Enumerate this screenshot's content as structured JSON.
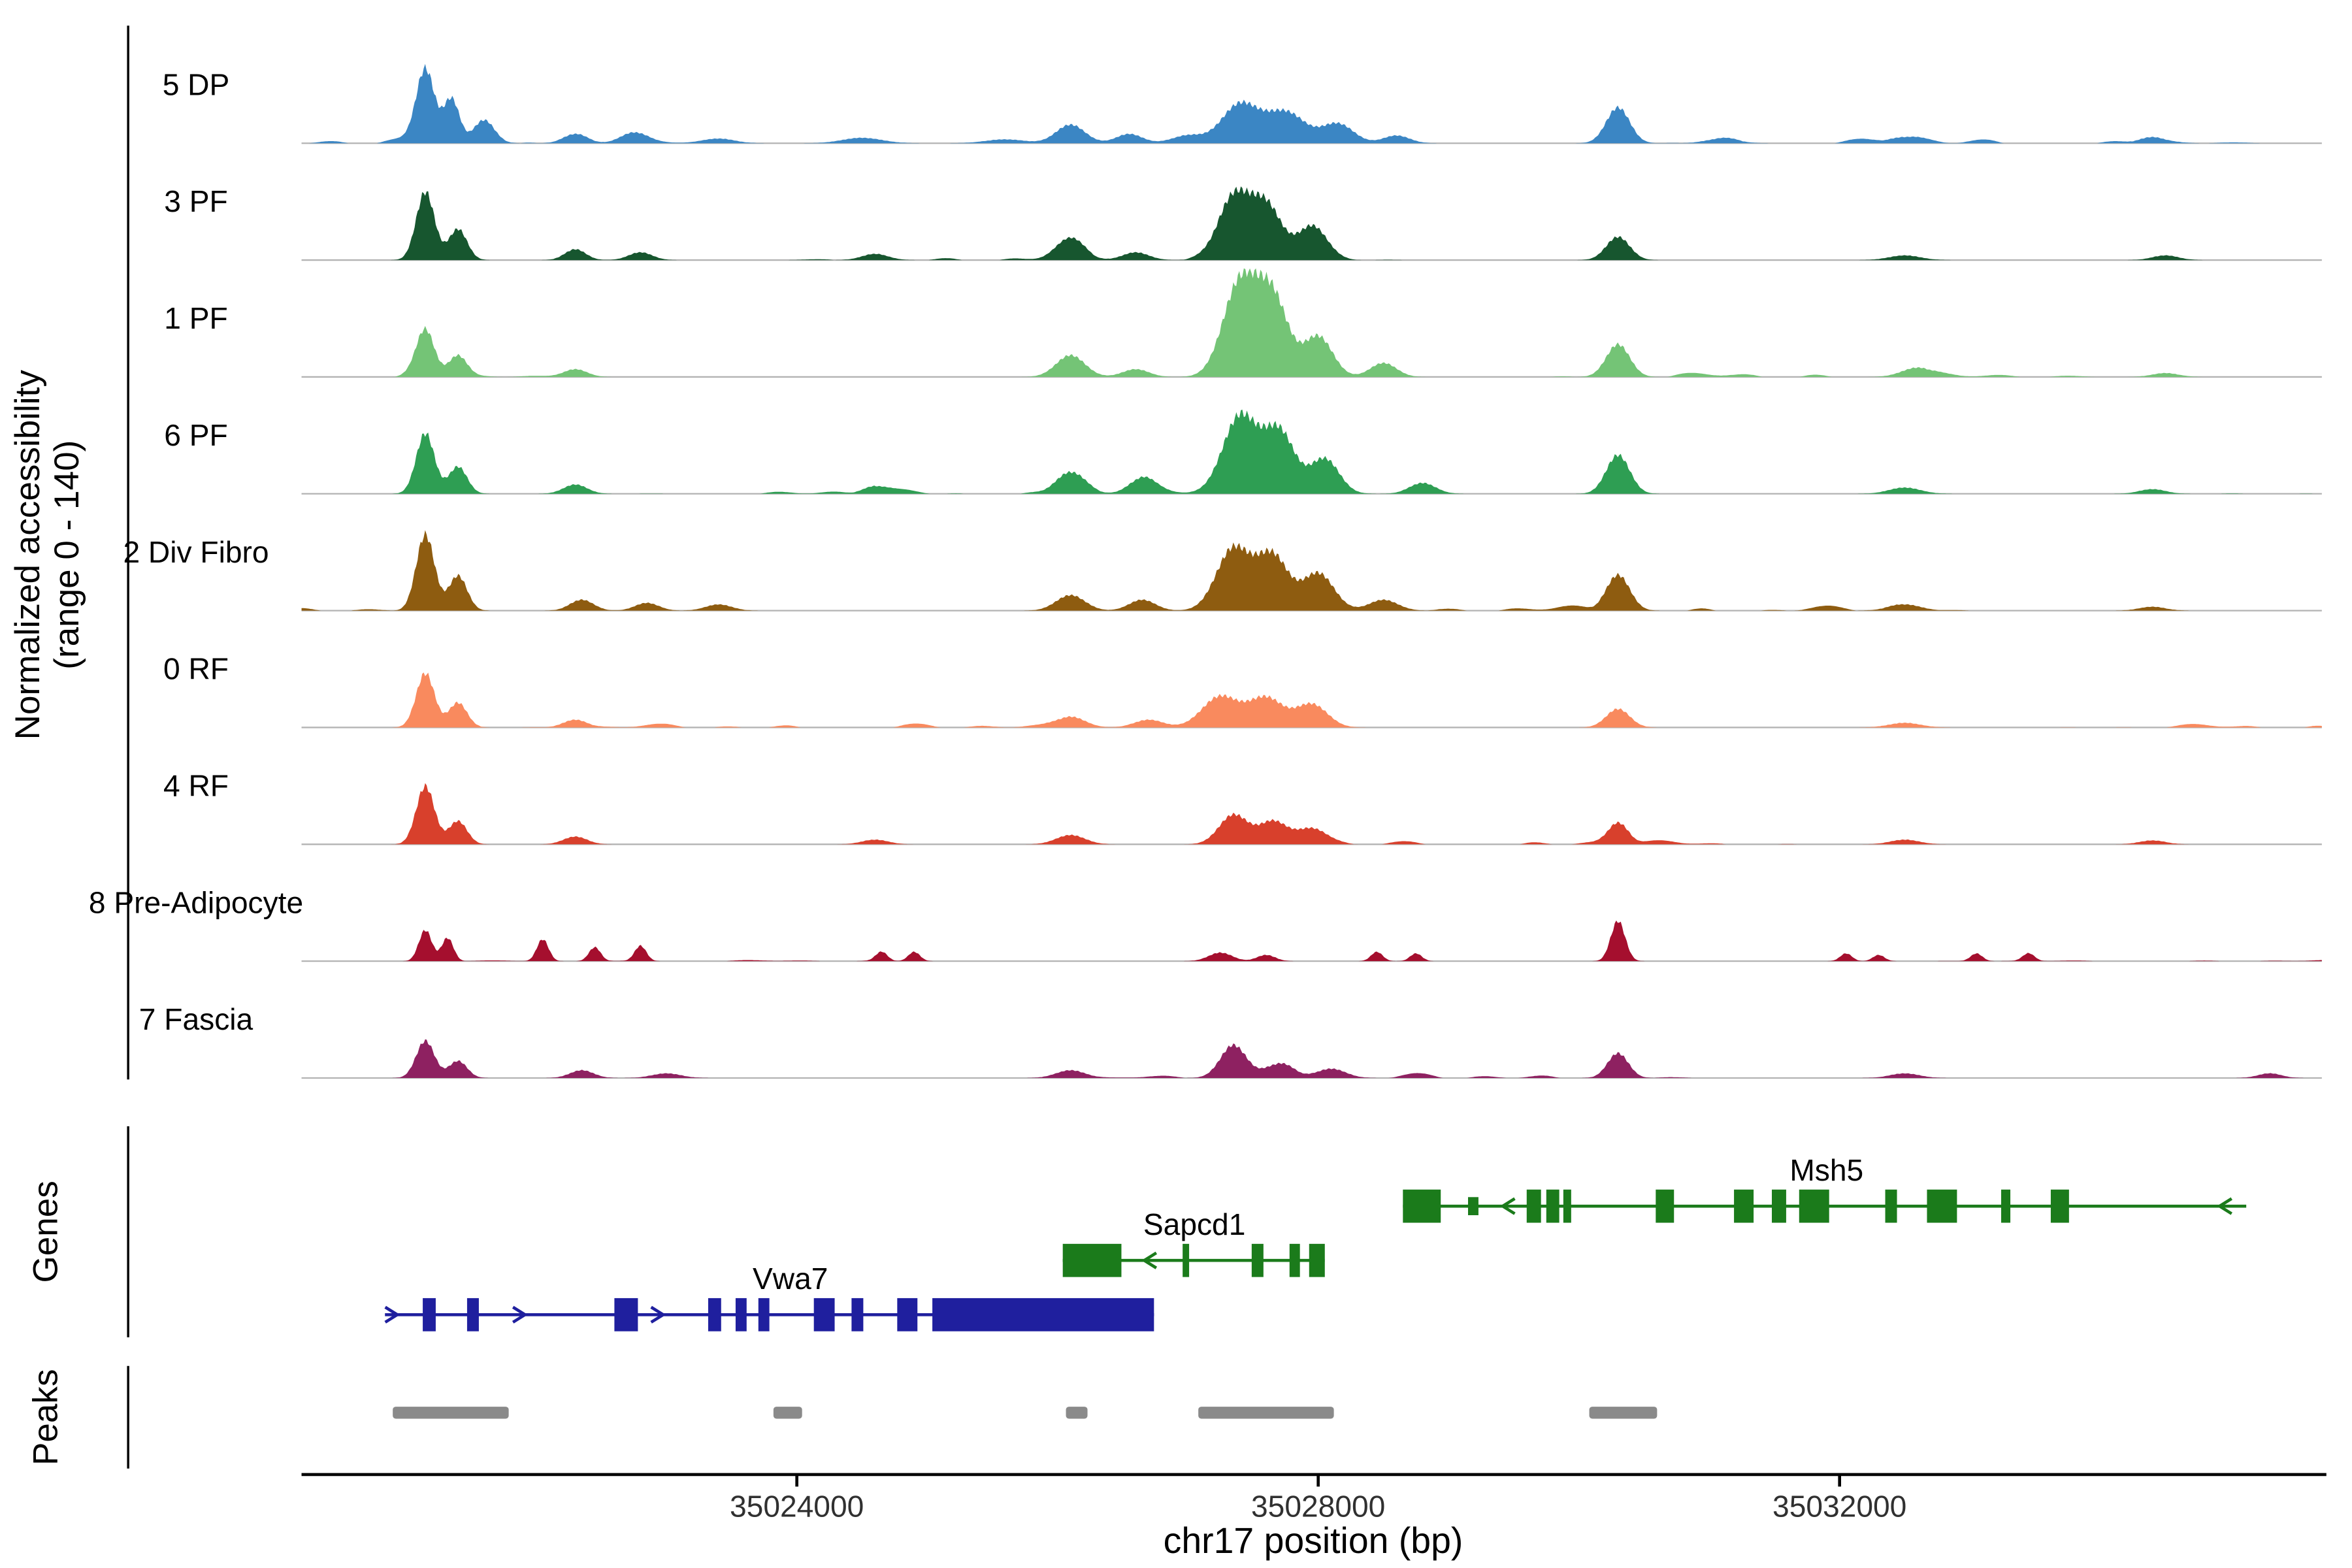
{
  "figure": {
    "ylabel_line1": "Normalized accessibility",
    "ylabel_line2": "(range 0 - 140)",
    "genes_section_label": "Genes",
    "peaks_section_label": "Peaks",
    "xlabel": "chr17 position (bp)"
  },
  "chart_data": {
    "type": "area",
    "title": "",
    "xlabel": "chr17 position (bp)",
    "ylabel": "Normalized accessibility (range 0 - 140)",
    "xlim": [
      35020200,
      35035700
    ],
    "ylim": [
      0,
      140
    ],
    "xticks": [
      35024000,
      35028000,
      35032000
    ],
    "grid": false,
    "legend": false,
    "tracks": [
      {
        "label": "5 DP",
        "color": "#3b86c4",
        "noise": 2.5,
        "peaks": [
          [
            35021150,
            95,
            70
          ],
          [
            35021350,
            55,
            60
          ],
          [
            35021600,
            30,
            80
          ],
          [
            35022300,
            12,
            90
          ],
          [
            35022750,
            14,
            100
          ],
          [
            35023400,
            6,
            120
          ],
          [
            35024500,
            7,
            150
          ],
          [
            35025600,
            5,
            150
          ],
          [
            35026100,
            24,
            110
          ],
          [
            35026550,
            12,
            100
          ],
          [
            35027000,
            10,
            120
          ],
          [
            35027400,
            50,
            140
          ],
          [
            35027750,
            40,
            150
          ],
          [
            35028150,
            25,
            120
          ],
          [
            35028600,
            10,
            100
          ],
          [
            35030300,
            46,
            90
          ],
          [
            35031100,
            6,
            120
          ],
          [
            35032500,
            8,
            130
          ],
          [
            35034400,
            8,
            100
          ]
        ]
      },
      {
        "label": "3 PF",
        "color": "#17562f",
        "noise": 2.5,
        "peaks": [
          [
            35021150,
            88,
            70
          ],
          [
            35021400,
            40,
            70
          ],
          [
            35022300,
            14,
            80
          ],
          [
            35022800,
            10,
            90
          ],
          [
            35024600,
            8,
            100
          ],
          [
            35026100,
            22,
            110
          ],
          [
            35026600,
            10,
            100
          ],
          [
            35027350,
            80,
            120
          ],
          [
            35027600,
            70,
            120
          ],
          [
            35027950,
            42,
            110
          ],
          [
            35030300,
            30,
            90
          ],
          [
            35032500,
            6,
            120
          ],
          [
            35034500,
            6,
            100
          ]
        ]
      },
      {
        "label": "1 PF",
        "color": "#74c476",
        "noise": 2.5,
        "peaks": [
          [
            35021150,
            60,
            70
          ],
          [
            35021400,
            28,
            70
          ],
          [
            35022300,
            10,
            90
          ],
          [
            35026100,
            28,
            110
          ],
          [
            35026600,
            10,
            100
          ],
          [
            35027400,
            120,
            130
          ],
          [
            35027650,
            100,
            120
          ],
          [
            35028000,
            52,
            110
          ],
          [
            35028500,
            18,
            100
          ],
          [
            35030300,
            42,
            90
          ],
          [
            35032600,
            12,
            120
          ],
          [
            35034500,
            5,
            100
          ]
        ]
      },
      {
        "label": "6 PF",
        "color": "#2e9e53",
        "noise": 2.5,
        "peaks": [
          [
            35021150,
            78,
            70
          ],
          [
            35021400,
            35,
            70
          ],
          [
            35022300,
            12,
            90
          ],
          [
            35024600,
            10,
            90
          ],
          [
            35026100,
            28,
            110
          ],
          [
            35026650,
            20,
            100
          ],
          [
            35027400,
            100,
            130
          ],
          [
            35027700,
            80,
            120
          ],
          [
            35028050,
            45,
            110
          ],
          [
            35028800,
            14,
            100
          ],
          [
            35030300,
            50,
            90
          ],
          [
            35032500,
            8,
            120
          ],
          [
            35034400,
            6,
            100
          ]
        ]
      },
      {
        "label": "2 Div Fibro",
        "color": "#8e5c10",
        "noise": 3,
        "peaks": [
          [
            35021150,
            98,
            70
          ],
          [
            35021400,
            45,
            70
          ],
          [
            35022350,
            14,
            90
          ],
          [
            35022850,
            10,
            90
          ],
          [
            35023400,
            8,
            100
          ],
          [
            35026100,
            20,
            110
          ],
          [
            35026650,
            14,
            100
          ],
          [
            35027350,
            80,
            130
          ],
          [
            35027650,
            70,
            120
          ],
          [
            35028000,
            48,
            120
          ],
          [
            35028500,
            14,
            110
          ],
          [
            35030300,
            46,
            90
          ],
          [
            35032500,
            8,
            120
          ],
          [
            35034400,
            5,
            100
          ]
        ]
      },
      {
        "label": "0 RF",
        "color": "#f98a5e",
        "noise": 2.5,
        "peaks": [
          [
            35021150,
            70,
            70
          ],
          [
            35021400,
            32,
            70
          ],
          [
            35022300,
            10,
            90
          ],
          [
            35026100,
            14,
            110
          ],
          [
            35026700,
            10,
            110
          ],
          [
            35027250,
            40,
            140
          ],
          [
            35027600,
            38,
            130
          ],
          [
            35027950,
            30,
            120
          ],
          [
            35030300,
            24,
            90
          ],
          [
            35032500,
            6,
            120
          ]
        ]
      },
      {
        "label": "4 RF",
        "color": "#d8402c",
        "noise": 2.5,
        "peaks": [
          [
            35021150,
            75,
            70
          ],
          [
            35021400,
            30,
            70
          ],
          [
            35022300,
            10,
            90
          ],
          [
            35024600,
            6,
            100
          ],
          [
            35026100,
            12,
            110
          ],
          [
            35027350,
            38,
            110
          ],
          [
            35027650,
            28,
            110
          ],
          [
            35027950,
            20,
            110
          ],
          [
            35030300,
            28,
            80
          ],
          [
            35032500,
            6,
            110
          ],
          [
            35034400,
            5,
            100
          ]
        ]
      },
      {
        "label": "8 Pre-Adipocyte",
        "color": "#a50f2e",
        "noise": 0.6,
        "peaks": [
          [
            35021150,
            40,
            50
          ],
          [
            35021320,
            30,
            45
          ],
          [
            35022050,
            28,
            45
          ],
          [
            35022450,
            18,
            45
          ],
          [
            35022800,
            20,
            45
          ],
          [
            35024650,
            12,
            45
          ],
          [
            35024900,
            12,
            45
          ],
          [
            35027250,
            11,
            90
          ],
          [
            35027600,
            8,
            70
          ],
          [
            35028450,
            12,
            45
          ],
          [
            35028750,
            10,
            45
          ],
          [
            35030300,
            52,
            55
          ],
          [
            35032050,
            10,
            45
          ],
          [
            35032300,
            8,
            45
          ],
          [
            35033050,
            10,
            45
          ],
          [
            35033450,
            10,
            45
          ]
        ]
      },
      {
        "label": "7 Fascia",
        "color": "#8e2161",
        "noise": 2.5,
        "peaks": [
          [
            35021150,
            48,
            70
          ],
          [
            35021400,
            22,
            70
          ],
          [
            35022350,
            10,
            90
          ],
          [
            35023000,
            6,
            110
          ],
          [
            35026100,
            10,
            110
          ],
          [
            35027350,
            42,
            100
          ],
          [
            35027700,
            18,
            110
          ],
          [
            35028100,
            12,
            110
          ],
          [
            35030300,
            32,
            80
          ],
          [
            35032500,
            6,
            110
          ],
          [
            35035300,
            6,
            90
          ]
        ]
      }
    ],
    "genes": [
      {
        "name": "Msh5",
        "strand": "-",
        "color": "#1b7b1b",
        "row": 0,
        "start": 35028650,
        "end": 35035120,
        "label_bp": 35031900,
        "exons": [
          [
            35028650,
            35028940
          ],
          [
            35029150,
            35029230,
            12
          ],
          [
            35029600,
            35029710
          ],
          [
            35029750,
            35029850
          ],
          [
            35029880,
            35029940
          ],
          [
            35030590,
            35030730
          ],
          [
            35031190,
            35031340
          ],
          [
            35031480,
            35031590
          ],
          [
            35031690,
            35031920
          ],
          [
            35032350,
            35032440
          ],
          [
            35032670,
            35032900
          ],
          [
            35033240,
            35033310
          ],
          [
            35033620,
            35033760
          ]
        ],
        "arrows": [
          35029450,
          35034950
        ]
      },
      {
        "name": "Sapcd1",
        "strand": "-",
        "color": "#1b7b1b",
        "row": 1,
        "start": 35026040,
        "end": 35028050,
        "label_bp": 35027050,
        "exons": [
          [
            35026040,
            35026490
          ],
          [
            35026960,
            35027010
          ],
          [
            35027490,
            35027580
          ],
          [
            35027780,
            35027860
          ],
          [
            35027930,
            35028050
          ]
        ],
        "arrows": [
          35026700
        ]
      },
      {
        "name": "Vwa7",
        "strand": "+",
        "color": "#1f1f9e",
        "row": 2,
        "start": 35020840,
        "end": 35026740,
        "label_bp": 35023950,
        "exons": [
          [
            35021130,
            35021230
          ],
          [
            35021470,
            35021560
          ],
          [
            35022600,
            35022780
          ],
          [
            35023320,
            35023420
          ],
          [
            35023530,
            35023615
          ],
          [
            35023705,
            35023790
          ],
          [
            35024130,
            35024290
          ],
          [
            35024420,
            35024510
          ],
          [
            35024770,
            35024925
          ],
          [
            35025040,
            35026740
          ]
        ],
        "arrows": [
          35020900,
          35021880,
          35022940
        ]
      }
    ],
    "peak_bars": [
      [
        35020900,
        35021790
      ],
      [
        35023820,
        35024040
      ],
      [
        35026065,
        35026230
      ],
      [
        35027080,
        35028120
      ],
      [
        35030080,
        35030600
      ]
    ],
    "peak_bar_color": "#8a8a8a"
  }
}
